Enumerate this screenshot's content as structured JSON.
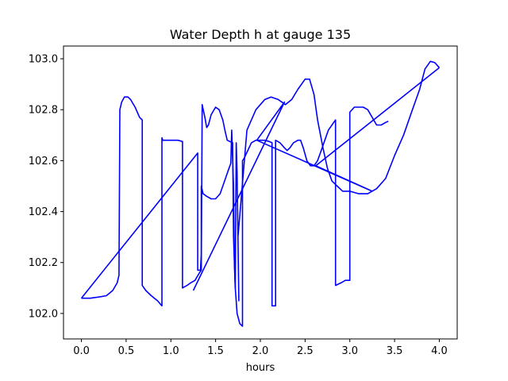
{
  "chart_data": {
    "type": "line",
    "title": "Water Depth h at gauge 135",
    "xlabel": "hours",
    "ylabel": "",
    "xlim": [
      -0.2,
      4.2
    ],
    "ylim": [
      101.9,
      103.05
    ],
    "x_ticks": [
      0.0,
      0.5,
      1.0,
      1.5,
      2.0,
      2.5,
      3.0,
      3.5,
      4.0
    ],
    "x_tick_labels": [
      "0.0",
      "0.5",
      "1.0",
      "1.5",
      "2.0",
      "2.5",
      "3.0",
      "3.5",
      "4.0"
    ],
    "y_ticks": [
      102.0,
      102.2,
      102.4,
      102.6,
      102.8,
      103.0
    ],
    "y_tick_labels": [
      "102.0",
      "102.2",
      "102.4",
      "102.6",
      "102.8",
      "103.0"
    ],
    "grid": false,
    "legend": "none",
    "series": [
      {
        "color": "#0000ff",
        "points": [
          [
            0.0,
            102.06
          ],
          [
            0.1,
            102.06
          ],
          [
            0.2,
            102.065
          ],
          [
            0.28,
            102.07
          ],
          [
            0.35,
            102.09
          ],
          [
            0.4,
            102.12
          ],
          [
            0.42,
            102.15
          ],
          [
            0.43,
            102.8
          ],
          [
            0.45,
            102.83
          ],
          [
            0.48,
            102.85
          ],
          [
            0.52,
            102.85
          ],
          [
            0.55,
            102.84
          ],
          [
            0.6,
            102.81
          ],
          [
            0.65,
            102.77
          ],
          [
            0.68,
            102.76
          ],
          [
            0.68,
            102.11
          ],
          [
            0.72,
            102.09
          ],
          [
            0.78,
            102.07
          ],
          [
            0.85,
            102.05
          ],
          [
            0.9,
            102.03
          ],
          [
            0.9,
            102.69
          ],
          [
            0.91,
            102.68
          ],
          [
            0.96,
            102.68
          ],
          [
            1.02,
            102.68
          ],
          [
            1.08,
            102.68
          ],
          [
            1.13,
            102.675
          ],
          [
            1.13,
            102.1
          ],
          [
            1.18,
            102.11
          ],
          [
            1.22,
            102.12
          ],
          [
            1.27,
            102.13
          ],
          [
            1.32,
            102.16
          ],
          [
            1.34,
            102.17
          ],
          [
            1.35,
            102.82
          ],
          [
            1.38,
            102.77
          ],
          [
            1.4,
            102.73
          ],
          [
            1.42,
            102.74
          ],
          [
            1.45,
            102.78
          ],
          [
            1.5,
            102.81
          ],
          [
            1.54,
            102.8
          ],
          [
            1.58,
            102.76
          ],
          [
            1.61,
            102.71
          ],
          [
            1.63,
            102.68
          ],
          [
            1.69,
            102.67
          ],
          [
            1.7,
            102.3
          ],
          [
            1.72,
            102.1
          ],
          [
            1.74,
            102.0
          ],
          [
            1.77,
            101.96
          ],
          [
            1.8,
            101.95
          ],
          [
            1.8,
            102.6
          ],
          [
            1.82,
            102.61
          ],
          [
            1.86,
            102.64
          ],
          [
            1.9,
            102.67
          ],
          [
            1.95,
            102.68
          ],
          [
            2.0,
            102.68
          ],
          [
            2.05,
            102.68
          ],
          [
            2.1,
            102.675
          ],
          [
            2.13,
            102.67
          ],
          [
            2.13,
            102.03
          ],
          [
            2.17,
            102.03
          ],
          [
            2.17,
            102.68
          ],
          [
            2.22,
            102.67
          ],
          [
            2.27,
            102.65
          ],
          [
            2.3,
            102.64
          ],
          [
            2.33,
            102.65
          ],
          [
            2.37,
            102.67
          ],
          [
            2.42,
            102.68
          ],
          [
            2.45,
            102.68
          ],
          [
            2.48,
            102.65
          ],
          [
            2.52,
            102.6
          ],
          [
            2.56,
            102.58
          ],
          [
            2.6,
            102.58
          ],
          [
            2.64,
            102.6
          ],
          [
            2.68,
            102.64
          ],
          [
            2.72,
            102.68
          ],
          [
            2.76,
            102.72
          ],
          [
            2.8,
            102.74
          ],
          [
            2.84,
            102.76
          ],
          [
            2.84,
            102.11
          ],
          [
            2.9,
            102.12
          ],
          [
            2.95,
            102.13
          ],
          [
            3.0,
            102.13
          ],
          [
            3.0,
            102.79
          ],
          [
            3.05,
            102.81
          ],
          [
            3.1,
            102.81
          ],
          [
            3.15,
            102.81
          ],
          [
            3.2,
            102.8
          ],
          [
            3.25,
            102.77
          ],
          [
            3.3,
            102.74
          ],
          [
            3.35,
            102.74
          ],
          [
            3.4,
            102.75
          ],
          [
            3.43,
            102.755
          ]
        ]
      },
      {
        "color": "#0000ff",
        "points": [
          [
            0.0,
            102.06
          ],
          [
            1.3,
            102.63
          ],
          [
            1.3,
            102.17
          ],
          [
            1.33,
            102.17
          ],
          [
            1.34,
            102.23
          ],
          [
            1.34,
            102.5
          ],
          [
            1.36,
            102.47
          ],
          [
            1.4,
            102.46
          ],
          [
            1.45,
            102.45
          ],
          [
            1.5,
            102.45
          ],
          [
            1.55,
            102.47
          ],
          [
            1.6,
            102.52
          ],
          [
            1.64,
            102.56
          ],
          [
            1.67,
            102.59
          ],
          [
            1.68,
            102.72
          ],
          [
            1.7,
            102.5
          ],
          [
            1.71,
            102.2
          ],
          [
            1.72,
            102.1
          ],
          [
            1.73,
            102.67
          ],
          [
            1.74,
            102.55
          ],
          [
            1.76,
            102.05
          ],
          [
            1.75,
            102.3
          ],
          [
            1.85,
            102.72
          ],
          [
            1.95,
            102.8
          ],
          [
            2.05,
            102.84
          ],
          [
            2.12,
            102.85
          ],
          [
            2.2,
            102.84
          ],
          [
            2.28,
            102.82
          ],
          [
            2.35,
            102.84
          ],
          [
            2.42,
            102.88
          ],
          [
            2.5,
            102.92
          ],
          [
            2.55,
            102.92
          ],
          [
            2.6,
            102.86
          ],
          [
            2.64,
            102.76
          ],
          [
            2.7,
            102.65
          ],
          [
            2.75,
            102.57
          ],
          [
            2.8,
            102.52
          ],
          [
            2.86,
            102.5
          ],
          [
            2.92,
            102.48
          ],
          [
            3.0,
            102.48
          ],
          [
            3.1,
            102.47
          ],
          [
            3.2,
            102.47
          ],
          [
            3.3,
            102.49
          ],
          [
            3.4,
            102.53
          ],
          [
            3.5,
            102.62
          ],
          [
            3.6,
            102.7
          ],
          [
            3.7,
            102.8
          ],
          [
            3.78,
            102.88
          ],
          [
            3.84,
            102.96
          ],
          [
            3.9,
            102.99
          ],
          [
            3.95,
            102.985
          ],
          [
            4.0,
            102.965
          ]
        ]
      },
      {
        "color": "#0000ff",
        "points": [
          [
            4.0,
            102.965
          ],
          [
            2.62,
            102.58
          ],
          [
            3.25,
            102.48
          ],
          [
            1.96,
            102.68
          ],
          [
            2.27,
            102.83
          ],
          [
            1.25,
            102.09
          ]
        ]
      }
    ]
  }
}
